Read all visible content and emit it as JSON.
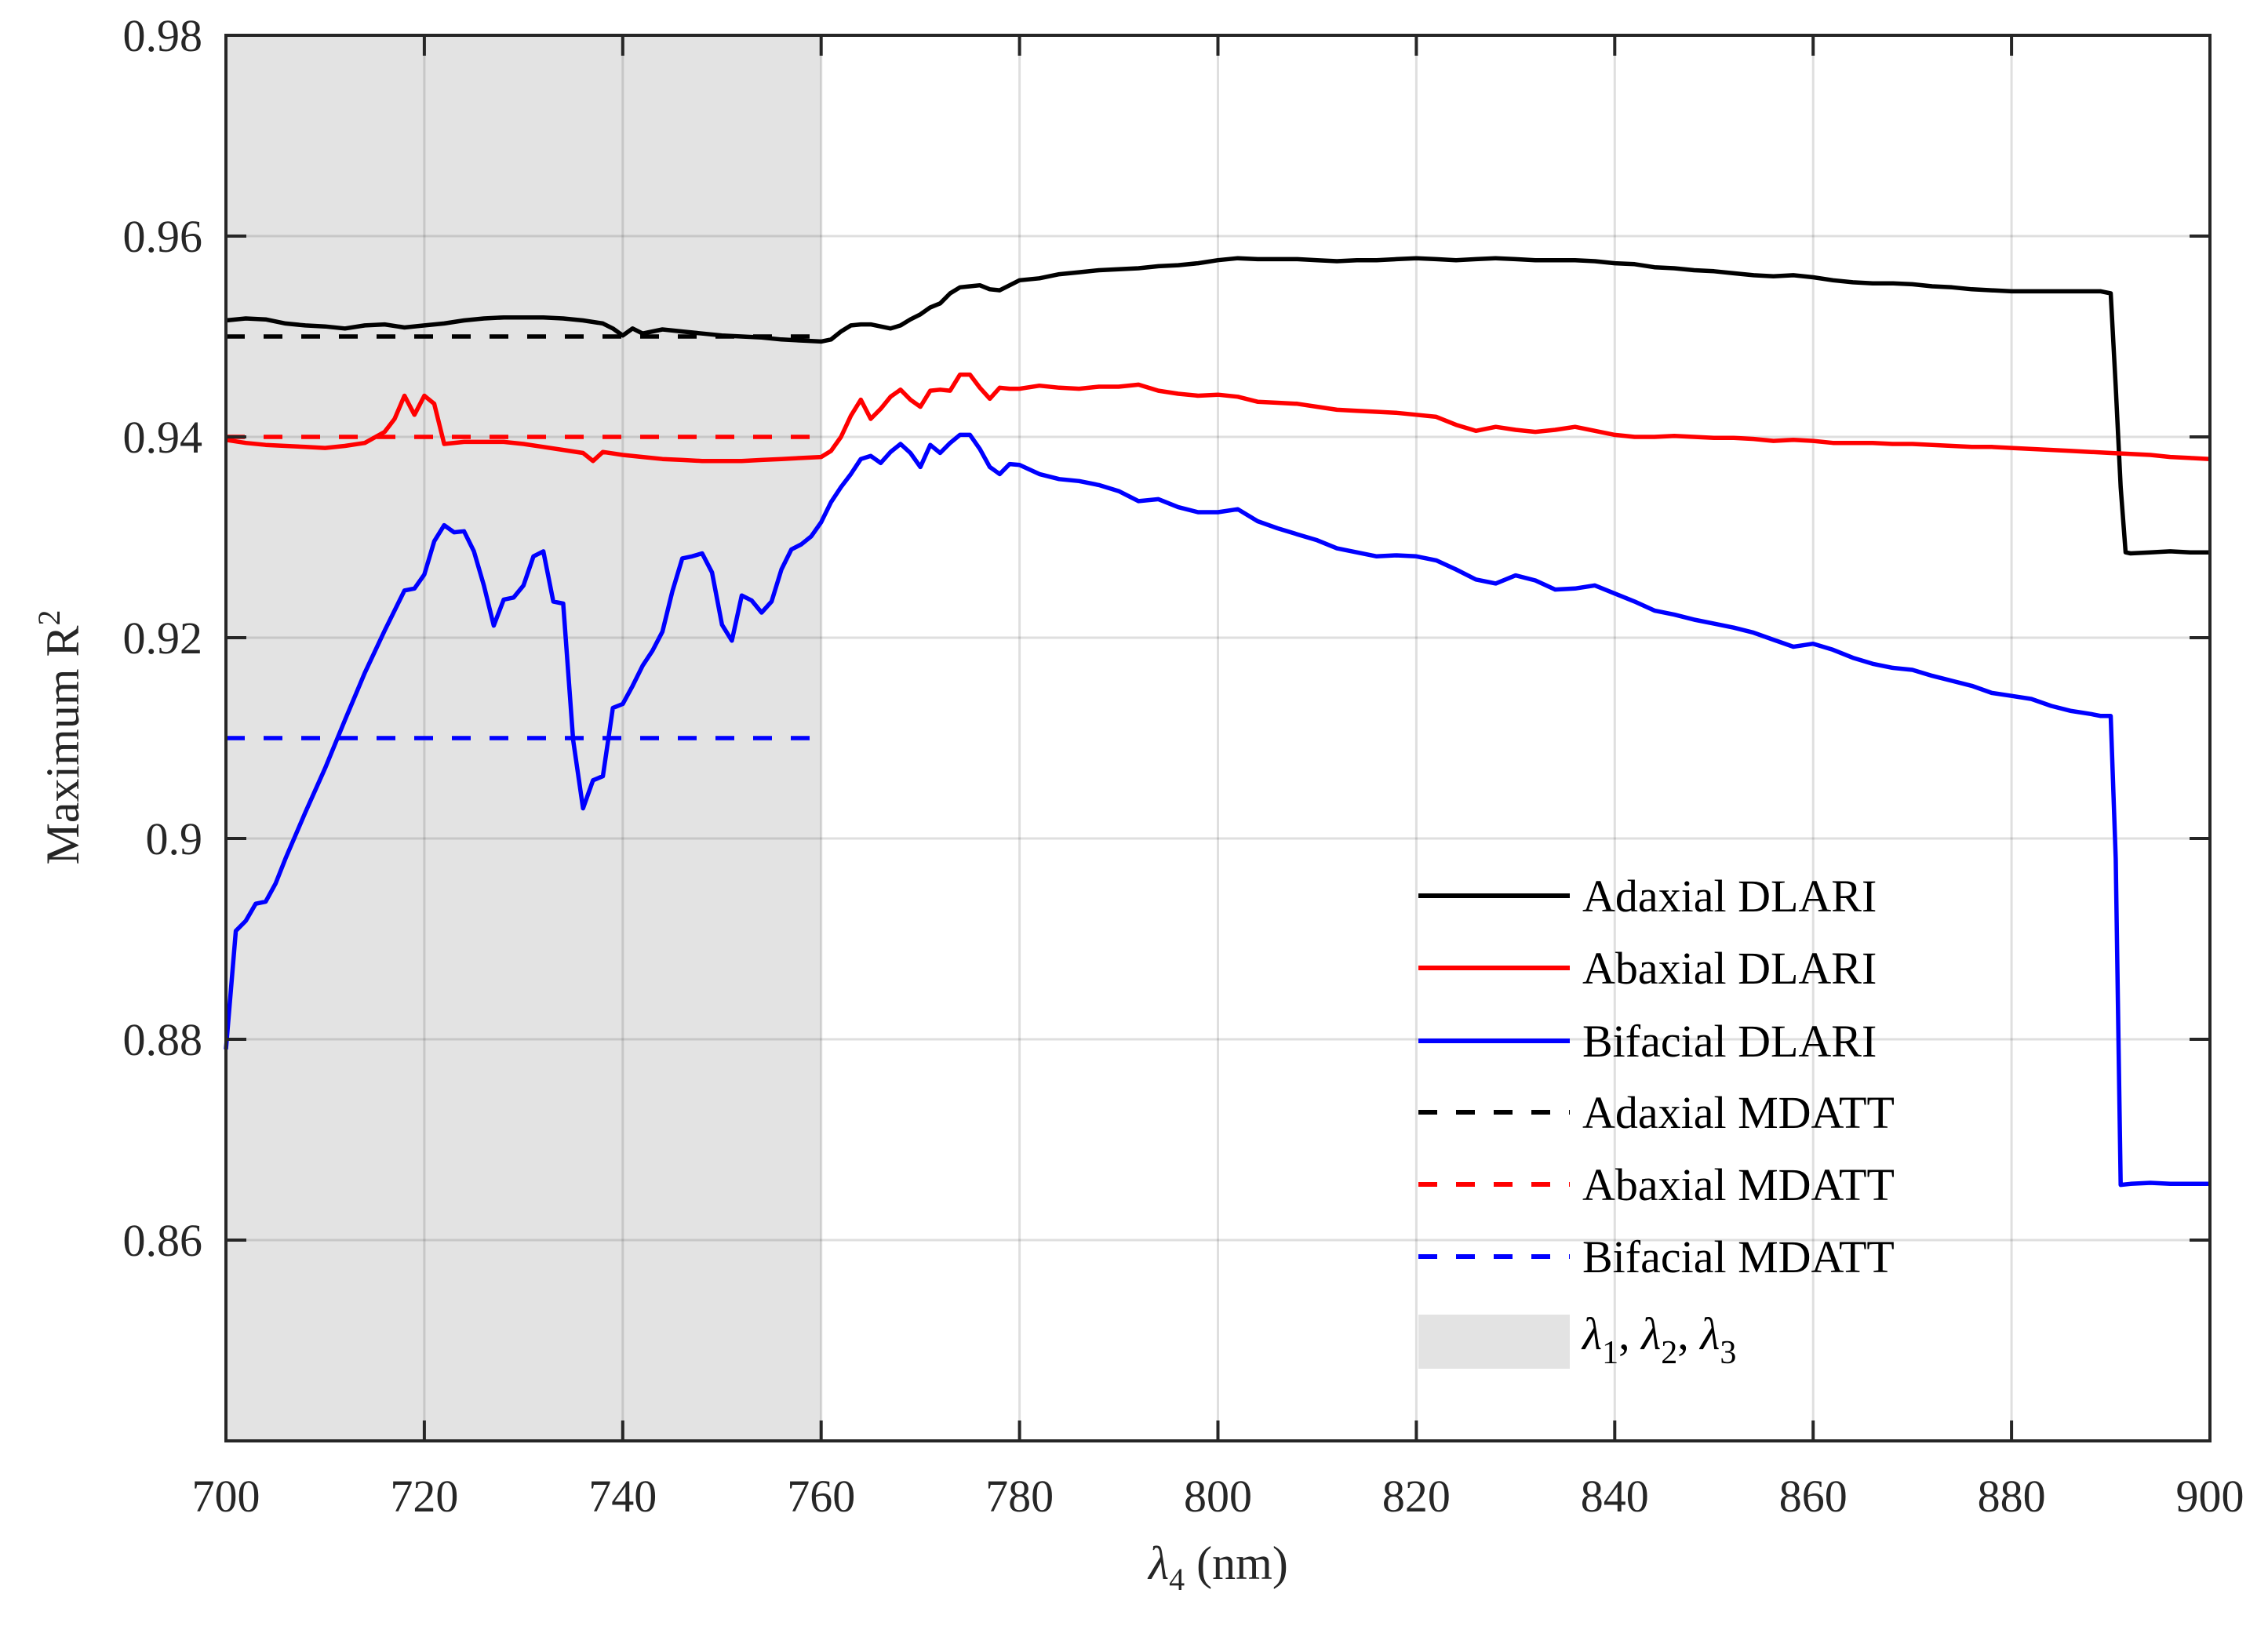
{
  "chart_data": {
    "type": "line",
    "title": "",
    "xlabel": "λ4 (nm)",
    "ylabel": "Maximum R²",
    "xlim": [
      700,
      900
    ],
    "ylim": [
      0.84,
      0.98
    ],
    "xticks": [
      700,
      720,
      740,
      760,
      780,
      800,
      820,
      840,
      860,
      880,
      900
    ],
    "yticks": [
      0.86,
      0.88,
      0.9,
      0.92,
      0.94,
      0.96,
      0.98
    ],
    "ytick_labels": [
      "0.86",
      "0.88",
      "0.9",
      "0.92",
      "0.94",
      "0.96",
      "0.98"
    ],
    "grid": true,
    "legend_position": "lower right (inside)",
    "shaded_region": {
      "x_start": 700,
      "x_end": 760,
      "color": "#e3e3e3",
      "label": "λ1, λ2, λ3"
    },
    "series": [
      {
        "name": "Adaxial DLARI",
        "color": "#000000",
        "style": "solid",
        "x": [
          700,
          702,
          704,
          706,
          708,
          710,
          712,
          714,
          716,
          718,
          720,
          722,
          724,
          726,
          728,
          730,
          732,
          734,
          736,
          738,
          739,
          740,
          741,
          742,
          744,
          746,
          748,
          750,
          752,
          754,
          756,
          758,
          760,
          761,
          762,
          763,
          764,
          765,
          766,
          767,
          768,
          769,
          770,
          771,
          772,
          773,
          774,
          775,
          776,
          777,
          778,
          779,
          780,
          782,
          784,
          786,
          788,
          790,
          792,
          794,
          796,
          798,
          800,
          802,
          804,
          806,
          808,
          810,
          812,
          814,
          816,
          818,
          820,
          822,
          824,
          826,
          828,
          830,
          832,
          834,
          836,
          838,
          840,
          842,
          844,
          846,
          848,
          850,
          852,
          854,
          856,
          858,
          860,
          862,
          864,
          866,
          868,
          870,
          872,
          874,
          876,
          878,
          880,
          882,
          884,
          886,
          888,
          889,
          890,
          890.5,
          891,
          891.5,
          892,
          894,
          896,
          898,
          900
        ],
        "values": [
          0.9516,
          0.9518,
          0.9517,
          0.9513,
          0.9511,
          0.951,
          0.9508,
          0.9511,
          0.9512,
          0.9509,
          0.9511,
          0.9513,
          0.9516,
          0.9518,
          0.9519,
          0.9519,
          0.9519,
          0.9518,
          0.9516,
          0.9513,
          0.9508,
          0.9501,
          0.9508,
          0.9503,
          0.9507,
          0.9505,
          0.9503,
          0.9501,
          0.95,
          0.9499,
          0.9497,
          0.9496,
          0.9495,
          0.9497,
          0.9505,
          0.9511,
          0.9512,
          0.9512,
          0.951,
          0.9508,
          0.9511,
          0.9517,
          0.9522,
          0.9529,
          0.9533,
          0.9543,
          0.9549,
          0.955,
          0.9551,
          0.9547,
          0.9546,
          0.9551,
          0.9556,
          0.9558,
          0.9562,
          0.9564,
          0.9566,
          0.9567,
          0.9568,
          0.957,
          0.9571,
          0.9573,
          0.9576,
          0.9578,
          0.9577,
          0.9577,
          0.9577,
          0.9576,
          0.9575,
          0.9576,
          0.9576,
          0.9577,
          0.9578,
          0.9577,
          0.9576,
          0.9577,
          0.9578,
          0.9577,
          0.9576,
          0.9576,
          0.9576,
          0.9575,
          0.9573,
          0.9572,
          0.9569,
          0.9568,
          0.9566,
          0.9565,
          0.9563,
          0.9561,
          0.956,
          0.9561,
          0.9559,
          0.9556,
          0.9554,
          0.9553,
          0.9553,
          0.9552,
          0.955,
          0.9549,
          0.9547,
          0.9546,
          0.9545,
          0.9545,
          0.9545,
          0.9545,
          0.9545,
          0.9545,
          0.9543,
          0.945,
          0.935,
          0.9285,
          0.9284,
          0.9285,
          0.9286,
          0.9285,
          0.9285
        ]
      },
      {
        "name": "Abaxial DLARI",
        "color": "#ff0000",
        "style": "solid",
        "x": [
          700,
          702,
          704,
          706,
          708,
          710,
          712,
          714,
          716,
          717,
          718,
          719,
          720,
          721,
          722,
          724,
          726,
          728,
          730,
          732,
          734,
          736,
          737,
          738,
          740,
          742,
          744,
          746,
          748,
          750,
          752,
          754,
          756,
          758,
          760,
          761,
          762,
          763,
          764,
          765,
          766,
          767,
          768,
          769,
          770,
          771,
          772,
          773,
          774,
          775,
          776,
          777,
          778,
          779,
          780,
          782,
          784,
          786,
          788,
          790,
          792,
          794,
          796,
          798,
          800,
          802,
          804,
          806,
          808,
          810,
          812,
          814,
          816,
          818,
          820,
          822,
          824,
          826,
          828,
          830,
          832,
          834,
          836,
          838,
          840,
          842,
          844,
          846,
          848,
          850,
          852,
          854,
          856,
          858,
          860,
          862,
          864,
          866,
          868,
          870,
          872,
          874,
          876,
          878,
          880,
          882,
          884,
          886,
          888,
          890,
          892,
          894,
          896,
          898,
          900
        ],
        "values": [
          0.9397,
          0.9394,
          0.9392,
          0.9391,
          0.939,
          0.9389,
          0.9391,
          0.9394,
          0.9405,
          0.9418,
          0.9441,
          0.9422,
          0.9441,
          0.9433,
          0.9393,
          0.9395,
          0.9395,
          0.9395,
          0.9393,
          0.939,
          0.9387,
          0.9384,
          0.9376,
          0.9385,
          0.9382,
          0.938,
          0.9378,
          0.9377,
          0.9376,
          0.9376,
          0.9376,
          0.9377,
          0.9378,
          0.9379,
          0.938,
          0.9386,
          0.94,
          0.9421,
          0.9437,
          0.9418,
          0.9428,
          0.944,
          0.9447,
          0.9437,
          0.943,
          0.9446,
          0.9447,
          0.9446,
          0.9462,
          0.9462,
          0.9449,
          0.9438,
          0.9449,
          0.9448,
          0.9448,
          0.9451,
          0.9449,
          0.9448,
          0.945,
          0.945,
          0.9452,
          0.9446,
          0.9443,
          0.9441,
          0.9442,
          0.944,
          0.9435,
          0.9434,
          0.9433,
          0.943,
          0.9427,
          0.9426,
          0.9425,
          0.9424,
          0.9422,
          0.942,
          0.9412,
          0.9406,
          0.941,
          0.9407,
          0.9405,
          0.9407,
          0.941,
          0.9406,
          0.9402,
          0.94,
          0.94,
          0.9401,
          0.94,
          0.9399,
          0.9399,
          0.9398,
          0.9396,
          0.9397,
          0.9396,
          0.9394,
          0.9394,
          0.9394,
          0.9393,
          0.9393,
          0.9392,
          0.9391,
          0.939,
          0.939,
          0.9389,
          0.9388,
          0.9387,
          0.9386,
          0.9385,
          0.9384,
          0.9383,
          0.9382,
          0.938,
          0.9379,
          0.9378
        ]
      },
      {
        "name": "Bifacial DLARI",
        "color": "#0000ff",
        "style": "solid",
        "x": [
          700,
          701,
          702,
          703,
          704,
          705,
          706,
          708,
          710,
          712,
          714,
          716,
          718,
          719,
          720,
          721,
          722,
          723,
          724,
          725,
          726,
          727,
          728,
          729,
          730,
          731,
          732,
          733,
          734,
          735,
          736,
          737,
          738,
          739,
          740,
          741,
          742,
          743,
          744,
          745,
          746,
          747,
          748,
          749,
          750,
          751,
          752,
          753,
          754,
          755,
          756,
          757,
          758,
          759,
          760,
          761,
          762,
          763,
          764,
          765,
          766,
          767,
          768,
          769,
          770,
          771,
          772,
          773,
          774,
          775,
          776,
          777,
          778,
          779,
          780,
          782,
          784,
          786,
          788,
          790,
          792,
          794,
          796,
          798,
          800,
          802,
          804,
          806,
          808,
          810,
          812,
          814,
          816,
          818,
          820,
          822,
          824,
          826,
          828,
          830,
          832,
          834,
          836,
          838,
          840,
          842,
          844,
          846,
          848,
          850,
          852,
          854,
          856,
          858,
          860,
          862,
          864,
          866,
          868,
          870,
          872,
          874,
          876,
          878,
          880,
          882,
          884,
          886,
          888,
          889,
          890,
          890.5,
          891,
          892,
          894,
          896,
          898,
          900
        ],
        "values": [
          0.879,
          0.8908,
          0.8918,
          0.8935,
          0.8937,
          0.8955,
          0.898,
          0.9026,
          0.907,
          0.9118,
          0.9165,
          0.9207,
          0.9247,
          0.9249,
          0.9263,
          0.9296,
          0.9312,
          0.9305,
          0.9306,
          0.9286,
          0.9252,
          0.9212,
          0.9238,
          0.924,
          0.9252,
          0.9281,
          0.9286,
          0.9236,
          0.9234,
          0.9098,
          0.903,
          0.9058,
          0.9062,
          0.913,
          0.9134,
          0.9152,
          0.9172,
          0.9187,
          0.9206,
          0.9246,
          0.9279,
          0.9281,
          0.9284,
          0.9265,
          0.9213,
          0.9197,
          0.9242,
          0.9237,
          0.9225,
          0.9236,
          0.9268,
          0.9288,
          0.9293,
          0.9301,
          0.9315,
          0.9335,
          0.935,
          0.9363,
          0.9378,
          0.9381,
          0.9374,
          0.9385,
          0.9393,
          0.9384,
          0.937,
          0.9392,
          0.9384,
          0.9394,
          0.9402,
          0.9402,
          0.9388,
          0.937,
          0.9363,
          0.9373,
          0.9372,
          0.9363,
          0.9358,
          0.9356,
          0.9352,
          0.9346,
          0.9336,
          0.9338,
          0.933,
          0.9325,
          0.9325,
          0.9328,
          0.9316,
          0.9309,
          0.9303,
          0.9297,
          0.9289,
          0.9285,
          0.9281,
          0.9282,
          0.9281,
          0.9277,
          0.9268,
          0.9258,
          0.9254,
          0.9262,
          0.9257,
          0.9248,
          0.9249,
          0.9252,
          0.9244,
          0.9236,
          0.9227,
          0.9223,
          0.9218,
          0.9214,
          0.921,
          0.9205,
          0.9198,
          0.9191,
          0.9194,
          0.9188,
          0.918,
          0.9174,
          0.917,
          0.9168,
          0.9162,
          0.9157,
          0.9152,
          0.9145,
          0.9142,
          0.9139,
          0.9132,
          0.9127,
          0.9124,
          0.9122,
          0.9122,
          0.898,
          0.8655,
          0.8656,
          0.8657,
          0.8656,
          0.8656,
          0.8656
        ]
      },
      {
        "name": "Adaxial MDATT",
        "color": "#000000",
        "style": "dashed",
        "x": [
          700,
          760
        ],
        "values": [
          0.95,
          0.95
        ]
      },
      {
        "name": "Abaxial MDATT",
        "color": "#ff0000",
        "style": "dashed",
        "x": [
          700,
          760
        ],
        "values": [
          0.94,
          0.94
        ]
      },
      {
        "name": "Bifacial MDATT",
        "color": "#0000ff",
        "style": "dashed",
        "x": [
          700,
          760
        ],
        "values": [
          0.91,
          0.91
        ]
      }
    ]
  },
  "axes": {
    "xlabel_main": "λ",
    "xlabel_sub": "4",
    "xlabel_unit": " (nm)",
    "ylabel_main": "Maximum R",
    "ylabel_sup": "2"
  },
  "legend": {
    "items": [
      {
        "label": "Adaxial DLARI",
        "color": "#000000",
        "style": "solid"
      },
      {
        "label": "Abaxial DLARI",
        "color": "#ff0000",
        "style": "solid"
      },
      {
        "label": "Bifacial DLARI",
        "color": "#0000ff",
        "style": "solid"
      },
      {
        "label": "Adaxial MDATT",
        "color": "#000000",
        "style": "dashed"
      },
      {
        "label": "Abaxial MDATT",
        "color": "#ff0000",
        "style": "dashed"
      },
      {
        "label": "Bifacial MDATT",
        "color": "#0000ff",
        "style": "dashed"
      }
    ],
    "patch": {
      "color": "#e3e3e3",
      "parts": [
        "λ",
        "1",
        ", ",
        "λ",
        "2",
        ", ",
        "λ",
        "3"
      ]
    }
  }
}
